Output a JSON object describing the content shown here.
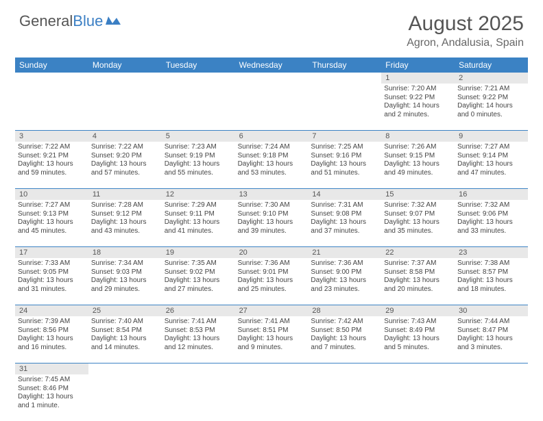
{
  "logo": {
    "part1": "General",
    "part2": "Blue"
  },
  "title": "August 2025",
  "subtitle": "Agron, Andalusia, Spain",
  "colors": {
    "header_bg": "#3b82c4",
    "header_text": "#ffffff",
    "daynum_bg": "#e8e8e8",
    "border": "#3b82c4",
    "text": "#444444",
    "logo_gray": "#555555",
    "logo_blue": "#3b7fc4"
  },
  "day_labels": [
    "Sunday",
    "Monday",
    "Tuesday",
    "Wednesday",
    "Thursday",
    "Friday",
    "Saturday"
  ],
  "weeks": [
    [
      null,
      null,
      null,
      null,
      null,
      {
        "n": "1",
        "sr": "Sunrise: 7:20 AM",
        "ss": "Sunset: 9:22 PM",
        "d1": "Daylight: 14 hours",
        "d2": "and 2 minutes."
      },
      {
        "n": "2",
        "sr": "Sunrise: 7:21 AM",
        "ss": "Sunset: 9:22 PM",
        "d1": "Daylight: 14 hours",
        "d2": "and 0 minutes."
      }
    ],
    [
      {
        "n": "3",
        "sr": "Sunrise: 7:22 AM",
        "ss": "Sunset: 9:21 PM",
        "d1": "Daylight: 13 hours",
        "d2": "and 59 minutes."
      },
      {
        "n": "4",
        "sr": "Sunrise: 7:22 AM",
        "ss": "Sunset: 9:20 PM",
        "d1": "Daylight: 13 hours",
        "d2": "and 57 minutes."
      },
      {
        "n": "5",
        "sr": "Sunrise: 7:23 AM",
        "ss": "Sunset: 9:19 PM",
        "d1": "Daylight: 13 hours",
        "d2": "and 55 minutes."
      },
      {
        "n": "6",
        "sr": "Sunrise: 7:24 AM",
        "ss": "Sunset: 9:18 PM",
        "d1": "Daylight: 13 hours",
        "d2": "and 53 minutes."
      },
      {
        "n": "7",
        "sr": "Sunrise: 7:25 AM",
        "ss": "Sunset: 9:16 PM",
        "d1": "Daylight: 13 hours",
        "d2": "and 51 minutes."
      },
      {
        "n": "8",
        "sr": "Sunrise: 7:26 AM",
        "ss": "Sunset: 9:15 PM",
        "d1": "Daylight: 13 hours",
        "d2": "and 49 minutes."
      },
      {
        "n": "9",
        "sr": "Sunrise: 7:27 AM",
        "ss": "Sunset: 9:14 PM",
        "d1": "Daylight: 13 hours",
        "d2": "and 47 minutes."
      }
    ],
    [
      {
        "n": "10",
        "sr": "Sunrise: 7:27 AM",
        "ss": "Sunset: 9:13 PM",
        "d1": "Daylight: 13 hours",
        "d2": "and 45 minutes."
      },
      {
        "n": "11",
        "sr": "Sunrise: 7:28 AM",
        "ss": "Sunset: 9:12 PM",
        "d1": "Daylight: 13 hours",
        "d2": "and 43 minutes."
      },
      {
        "n": "12",
        "sr": "Sunrise: 7:29 AM",
        "ss": "Sunset: 9:11 PM",
        "d1": "Daylight: 13 hours",
        "d2": "and 41 minutes."
      },
      {
        "n": "13",
        "sr": "Sunrise: 7:30 AM",
        "ss": "Sunset: 9:10 PM",
        "d1": "Daylight: 13 hours",
        "d2": "and 39 minutes."
      },
      {
        "n": "14",
        "sr": "Sunrise: 7:31 AM",
        "ss": "Sunset: 9:08 PM",
        "d1": "Daylight: 13 hours",
        "d2": "and 37 minutes."
      },
      {
        "n": "15",
        "sr": "Sunrise: 7:32 AM",
        "ss": "Sunset: 9:07 PM",
        "d1": "Daylight: 13 hours",
        "d2": "and 35 minutes."
      },
      {
        "n": "16",
        "sr": "Sunrise: 7:32 AM",
        "ss": "Sunset: 9:06 PM",
        "d1": "Daylight: 13 hours",
        "d2": "and 33 minutes."
      }
    ],
    [
      {
        "n": "17",
        "sr": "Sunrise: 7:33 AM",
        "ss": "Sunset: 9:05 PM",
        "d1": "Daylight: 13 hours",
        "d2": "and 31 minutes."
      },
      {
        "n": "18",
        "sr": "Sunrise: 7:34 AM",
        "ss": "Sunset: 9:03 PM",
        "d1": "Daylight: 13 hours",
        "d2": "and 29 minutes."
      },
      {
        "n": "19",
        "sr": "Sunrise: 7:35 AM",
        "ss": "Sunset: 9:02 PM",
        "d1": "Daylight: 13 hours",
        "d2": "and 27 minutes."
      },
      {
        "n": "20",
        "sr": "Sunrise: 7:36 AM",
        "ss": "Sunset: 9:01 PM",
        "d1": "Daylight: 13 hours",
        "d2": "and 25 minutes."
      },
      {
        "n": "21",
        "sr": "Sunrise: 7:36 AM",
        "ss": "Sunset: 9:00 PM",
        "d1": "Daylight: 13 hours",
        "d2": "and 23 minutes."
      },
      {
        "n": "22",
        "sr": "Sunrise: 7:37 AM",
        "ss": "Sunset: 8:58 PM",
        "d1": "Daylight: 13 hours",
        "d2": "and 20 minutes."
      },
      {
        "n": "23",
        "sr": "Sunrise: 7:38 AM",
        "ss": "Sunset: 8:57 PM",
        "d1": "Daylight: 13 hours",
        "d2": "and 18 minutes."
      }
    ],
    [
      {
        "n": "24",
        "sr": "Sunrise: 7:39 AM",
        "ss": "Sunset: 8:56 PM",
        "d1": "Daylight: 13 hours",
        "d2": "and 16 minutes."
      },
      {
        "n": "25",
        "sr": "Sunrise: 7:40 AM",
        "ss": "Sunset: 8:54 PM",
        "d1": "Daylight: 13 hours",
        "d2": "and 14 minutes."
      },
      {
        "n": "26",
        "sr": "Sunrise: 7:41 AM",
        "ss": "Sunset: 8:53 PM",
        "d1": "Daylight: 13 hours",
        "d2": "and 12 minutes."
      },
      {
        "n": "27",
        "sr": "Sunrise: 7:41 AM",
        "ss": "Sunset: 8:51 PM",
        "d1": "Daylight: 13 hours",
        "d2": "and 9 minutes."
      },
      {
        "n": "28",
        "sr": "Sunrise: 7:42 AM",
        "ss": "Sunset: 8:50 PM",
        "d1": "Daylight: 13 hours",
        "d2": "and 7 minutes."
      },
      {
        "n": "29",
        "sr": "Sunrise: 7:43 AM",
        "ss": "Sunset: 8:49 PM",
        "d1": "Daylight: 13 hours",
        "d2": "and 5 minutes."
      },
      {
        "n": "30",
        "sr": "Sunrise: 7:44 AM",
        "ss": "Sunset: 8:47 PM",
        "d1": "Daylight: 13 hours",
        "d2": "and 3 minutes."
      }
    ],
    [
      {
        "n": "31",
        "sr": "Sunrise: 7:45 AM",
        "ss": "Sunset: 8:46 PM",
        "d1": "Daylight: 13 hours",
        "d2": "and 1 minute."
      },
      null,
      null,
      null,
      null,
      null,
      null
    ]
  ]
}
